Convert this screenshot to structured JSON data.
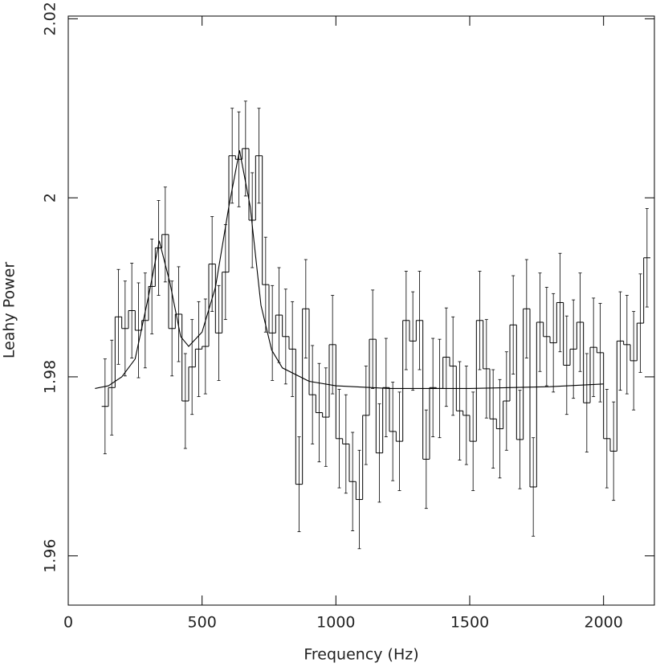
{
  "chart_data": {
    "type": "histogram-errorbar",
    "x_label": "Frequency (Hz)",
    "y_label": "Leahy Power",
    "xlim": [
      0,
      2190
    ],
    "ylim": [
      1.9545,
      2.0203
    ],
    "xticks": [
      0,
      500,
      1000,
      1500,
      2000
    ],
    "yticks": [
      1.96,
      1.98,
      2,
      2.02
    ],
    "color": "#000000",
    "bins": [
      125,
      150,
      175,
      200,
      225,
      250,
      275,
      300,
      325,
      350,
      375,
      400,
      425,
      450,
      475,
      500,
      525,
      550,
      575,
      600,
      625,
      650,
      675,
      700,
      725,
      750,
      775,
      800,
      825,
      850,
      875,
      900,
      925,
      950,
      975,
      1000,
      1025,
      1050,
      1075,
      1100,
      1125,
      1150,
      1175,
      1200,
      1225,
      1250,
      1275,
      1300,
      1325,
      1350,
      1375,
      1400,
      1425,
      1450,
      1475,
      1500,
      1525,
      1550,
      1575,
      1600,
      1625,
      1650,
      1675,
      1700,
      1725,
      1750,
      1775,
      1800,
      1825,
      1850,
      1875,
      1900,
      1925,
      1950,
      1975,
      2000,
      2025,
      2050,
      2075,
      2100,
      2125,
      2150,
      2175
    ],
    "values": [
      1.9767,
      1.9788,
      1.9867,
      1.9854,
      1.9874,
      1.9852,
      1.9863,
      1.9901,
      1.9944,
      1.9959,
      1.9854,
      1.987,
      1.9773,
      1.9811,
      1.9831,
      1.9834,
      1.9926,
      1.9849,
      1.9917,
      2.0047,
      2.0043,
      2.0055,
      1.9975,
      2.0047,
      1.9903,
      1.9849,
      1.9869,
      1.9845,
      1.9831,
      1.968,
      1.9876,
      1.978,
      1.976,
      1.9755,
      1.9836,
      1.9731,
      1.9725,
      1.9683,
      1.9663,
      1.9757,
      1.9842,
      1.9715,
      1.9788,
      1.9739,
      1.9728,
      1.9863,
      1.984,
      1.9863,
      1.9708,
      1.9788,
      1.9787,
      1.9822,
      1.9812,
      1.9762,
      1.9757,
      1.9728,
      1.9863,
      1.9809,
      1.9753,
      1.9742,
      1.9773,
      1.9858,
      1.973,
      1.9876,
      1.9677,
      1.9861,
      1.9845,
      1.9838,
      1.9883,
      1.9813,
      1.9831,
      1.9861,
      1.9771,
      1.9833,
      1.9827,
      1.9731,
      1.9717,
      1.984,
      1.9836,
      1.9818,
      1.986,
      1.9933
    ],
    "errors": [
      0.0053,
      0.0053,
      0.0053,
      0.0053,
      0.0053,
      0.0053,
      0.0053,
      0.0053,
      0.0053,
      0.0053,
      0.0053,
      0.0053,
      0.0053,
      0.0053,
      0.0053,
      0.0053,
      0.0053,
      0.0053,
      0.0053,
      0.0053,
      0.0053,
      0.0053,
      0.0053,
      0.0053,
      0.0053,
      0.0053,
      0.0053,
      0.0053,
      0.0053,
      0.0053,
      0.0055,
      0.0055,
      0.0055,
      0.0055,
      0.0055,
      0.0055,
      0.0055,
      0.0055,
      0.0055,
      0.0055,
      0.0055,
      0.0055,
      0.0055,
      0.0055,
      0.0055,
      0.0055,
      0.0055,
      0.0055,
      0.0055,
      0.0055,
      0.0055,
      0.0055,
      0.0055,
      0.0055,
      0.0055,
      0.0055,
      0.0055,
      0.0055,
      0.0055,
      0.0055,
      0.0055,
      0.0055,
      0.0055,
      0.0055,
      0.0055,
      0.0055,
      0.0055,
      0.0055,
      0.0055,
      0.0055,
      0.0055,
      0.0055,
      0.0055,
      0.0055,
      0.0055,
      0.0055,
      0.0055,
      0.0055,
      0.0055,
      0.0055,
      0.0055,
      0.0055
    ],
    "fit": {
      "x": [
        100,
        150,
        200,
        250,
        300,
        340,
        380,
        420,
        450,
        500,
        550,
        600,
        640,
        680,
        720,
        760,
        800,
        900,
        1000,
        1200,
        1500,
        1800,
        2000
      ],
      "y": [
        1.9787,
        1.979,
        1.98,
        1.982,
        1.989,
        1.9952,
        1.9905,
        1.9845,
        1.9834,
        1.985,
        1.99,
        1.999,
        2.0053,
        1.999,
        1.988,
        1.983,
        1.981,
        1.9795,
        1.979,
        1.9787,
        1.9787,
        1.9789,
        1.9792
      ]
    }
  }
}
